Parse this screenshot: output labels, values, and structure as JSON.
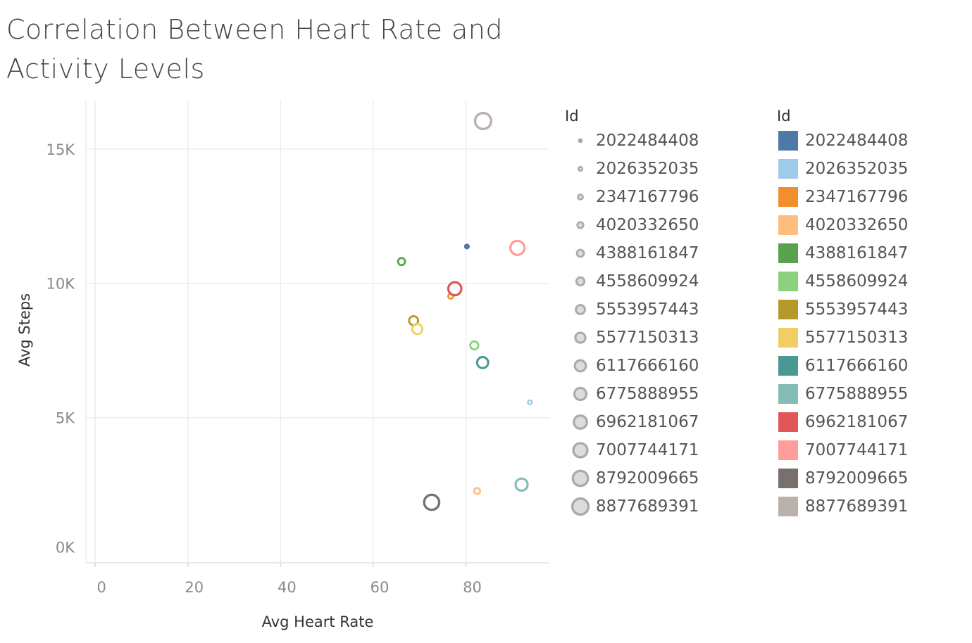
{
  "chart_data": {
    "type": "scatter",
    "title": "Correlation Between Heart Rate and Activity Levels",
    "xlabel": "Avg Heart Rate",
    "ylabel": "Avg Steps",
    "xlim": [
      -2,
      98
    ],
    "ylim": [
      -400,
      16800
    ],
    "x_ticks": [
      0,
      20,
      40,
      60,
      80
    ],
    "x_tick_labels": [
      "0",
      "20",
      "40",
      "60",
      "80"
    ],
    "y_ticks": [
      0,
      5000,
      10000,
      15000
    ],
    "y_tick_labels": [
      "0K",
      "5K",
      "10K",
      "15K"
    ],
    "grid": true,
    "marker": "hollow-circle",
    "size_by": "Id",
    "color_by": "Id",
    "points": [
      {
        "id": "2022484408",
        "x": 80.2,
        "y": 11370,
        "color": "#4e79a7"
      },
      {
        "id": "2026352035",
        "x": 93.8,
        "y": 5570,
        "color": "#a0cbe8"
      },
      {
        "id": "2347167796",
        "x": 76.7,
        "y": 9520,
        "color": "#f28e2b"
      },
      {
        "id": "4020332650",
        "x": 82.4,
        "y": 2270,
        "color": "#ffbe7d"
      },
      {
        "id": "4388161847",
        "x": 66.1,
        "y": 10810,
        "color": "#59a14f"
      },
      {
        "id": "4558609924",
        "x": 81.8,
        "y": 7690,
        "color": "#8cd17d"
      },
      {
        "id": "5553957443",
        "x": 68.7,
        "y": 8610,
        "color": "#b6992d"
      },
      {
        "id": "5577150313",
        "x": 69.5,
        "y": 8300,
        "color": "#f1ce63"
      },
      {
        "id": "6117666160",
        "x": 83.6,
        "y": 7050,
        "color": "#499894"
      },
      {
        "id": "6775888955",
        "x": 92.0,
        "y": 2510,
        "color": "#86bcb6"
      },
      {
        "id": "6962181067",
        "x": 77.6,
        "y": 9800,
        "color": "#e15759"
      },
      {
        "id": "7007744171",
        "x": 91.1,
        "y": 11320,
        "color": "#ff9d9a"
      },
      {
        "id": "8792009665",
        "x": 72.6,
        "y": 1850,
        "color": "#79706e"
      },
      {
        "id": "8877689391",
        "x": 83.7,
        "y": 16040,
        "color": "#bab0ac"
      }
    ]
  },
  "legend_size": {
    "title": "Id",
    "items": [
      {
        "label": "2022484408",
        "rank": 1
      },
      {
        "label": "2026352035",
        "rank": 2
      },
      {
        "label": "2347167796",
        "rank": 3
      },
      {
        "label": "4020332650",
        "rank": 4
      },
      {
        "label": "4388161847",
        "rank": 5
      },
      {
        "label": "4558609924",
        "rank": 6
      },
      {
        "label": "5553957443",
        "rank": 7
      },
      {
        "label": "5577150313",
        "rank": 8
      },
      {
        "label": "6117666160",
        "rank": 9
      },
      {
        "label": "6775888955",
        "rank": 10
      },
      {
        "label": "6962181067",
        "rank": 11
      },
      {
        "label": "7007744171",
        "rank": 12
      },
      {
        "label": "8792009665",
        "rank": 13
      },
      {
        "label": "8877689391",
        "rank": 14
      }
    ]
  },
  "legend_color": {
    "title": "Id",
    "items": [
      {
        "label": "2022484408",
        "color": "#4e79a7"
      },
      {
        "label": "2026352035",
        "color": "#a0cbe8"
      },
      {
        "label": "2347167796",
        "color": "#f28e2b"
      },
      {
        "label": "4020332650",
        "color": "#ffbe7d"
      },
      {
        "label": "4388161847",
        "color": "#59a14f"
      },
      {
        "label": "4558609924",
        "color": "#8cd17d"
      },
      {
        "label": "5553957443",
        "color": "#b6992d"
      },
      {
        "label": "5577150313",
        "color": "#f1ce63"
      },
      {
        "label": "6117666160",
        "color": "#499894"
      },
      {
        "label": "6775888955",
        "color": "#86bcb6"
      },
      {
        "label": "6962181067",
        "color": "#e15759"
      },
      {
        "label": "7007744171",
        "color": "#ff9d9a"
      },
      {
        "label": "8792009665",
        "color": "#79706e"
      },
      {
        "label": "8877689391",
        "color": "#bab0ac"
      }
    ]
  }
}
